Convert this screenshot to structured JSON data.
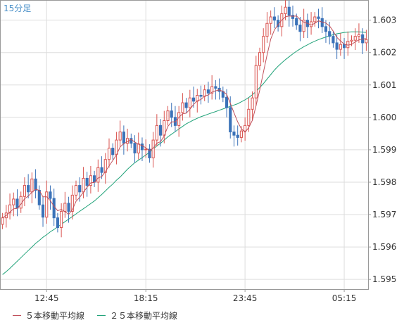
{
  "chart_data": {
    "type": "candlestick",
    "timeframe_label": "15分足",
    "x_tick_labels": [
      "12:45",
      "18:15",
      "23:45",
      "05:15"
    ],
    "y_tick_labels": [
      "1.603",
      "1.602",
      "1.601",
      "1.600",
      "1.599",
      "1.598",
      "1.597",
      "1.596",
      "1.595"
    ],
    "ylim": [
      1.5947,
      1.6036
    ],
    "grid": true,
    "colors": {
      "up": "#d9534f",
      "down": "#3b72b8",
      "ma5": "#c0505a",
      "ma25": "#22a37a",
      "grid": "#dddddd",
      "axis": "#999999",
      "label": "#4a90c8"
    },
    "series": [
      {
        "name": "５本移動平均線",
        "type": "line",
        "color": "#c0505a"
      },
      {
        "name": "２５本移動平均線",
        "type": "line",
        "color": "#22a37a"
      }
    ],
    "close": [
      1.5969,
      1.59705,
      1.5973,
      1.59748,
      1.5972,
      1.59756,
      1.5979,
      1.5977,
      1.5981,
      1.59775,
      1.5973,
      1.59692,
      1.5977,
      1.5975,
      1.5969,
      1.5966,
      1.5971,
      1.59735,
      1.5971,
      1.5976,
      1.5979,
      1.5977,
      1.59812,
      1.5979,
      1.5982,
      1.598,
      1.59845,
      1.5983,
      1.5987,
      1.59905,
      1.59885,
      1.5993,
      1.59955,
      1.5992,
      1.59935,
      1.5992,
      1.5989,
      1.59918,
      1.599,
      1.59902,
      1.59875,
      1.5993,
      1.59975,
      1.59945,
      1.5999,
      1.6002,
      1.6,
      1.59975,
      1.60015,
      1.60045,
      1.6003,
      1.6006,
      1.6005,
      1.60068,
      1.60065,
      1.60085,
      1.60075,
      1.60095,
      1.6009,
      1.6008,
      1.60062,
      1.6003,
      1.59955,
      1.59945,
      1.59938,
      1.59958,
      1.59975,
      1.60025,
      1.6006,
      1.6016,
      1.602,
      1.6025,
      1.6029,
      1.6031,
      1.603,
      1.6028,
      1.6032,
      1.6034,
      1.60315,
      1.60305,
      1.60285,
      1.60265,
      1.603,
      1.6028,
      1.60295,
      1.6031,
      1.60305,
      1.6028,
      1.60265,
      1.6025,
      1.6023,
      1.6021,
      1.60225,
      1.60215,
      1.60235,
      1.60238,
      1.6025,
      1.60255,
      1.6023,
      1.6024
    ],
    "ma5": [
      1.5969,
      1.59697,
      1.59708,
      1.59718,
      1.59719,
      1.59732,
      1.59749,
      1.59757,
      1.59769,
      1.59778,
      1.59775,
      1.59755,
      1.59755,
      1.59743,
      1.59726,
      1.59712,
      1.59716,
      1.59709,
      1.59701,
      1.59715,
      1.59741,
      1.59753,
      1.59769,
      1.59784,
      1.59798,
      1.59799,
      1.59813,
      1.59817,
      1.59833,
      1.5985,
      1.59867,
      1.59884,
      1.59909,
      1.59919,
      1.59925,
      1.59932,
      1.59924,
      1.59917,
      1.59913,
      1.59906,
      1.59897,
      1.59905,
      1.5992,
      1.59925,
      1.59943,
      1.59972,
      1.59986,
      1.59986,
      1.6,
      1.60011,
      1.60013,
      1.60025,
      1.6004,
      1.60051,
      1.60055,
      1.60066,
      1.60069,
      1.60078,
      1.60082,
      1.60085,
      1.6008,
      1.60071,
      1.60043,
      1.60014,
      1.59986,
      1.59965,
      1.59954,
      1.59968,
      1.59991,
      1.60036,
      1.60084,
      1.60139,
      1.60192,
      1.60242,
      1.6027,
      1.60286,
      1.603,
      1.6031,
      1.60313,
      1.60312,
      1.60313,
      1.60302,
      1.60294,
      1.6029,
      1.60285,
      1.6029,
      1.60298,
      1.60294,
      1.60291,
      1.60282,
      1.60266,
      1.60247,
      1.60236,
      1.60226,
      1.60223,
      1.60225,
      1.60233,
      1.60239,
      1.60242,
      1.60243
    ],
    "ma25": [
      1.59515,
      1.59524,
      1.59534,
      1.59545,
      1.59556,
      1.59567,
      1.59578,
      1.59589,
      1.596,
      1.59611,
      1.5962,
      1.5963,
      1.59638,
      1.59647,
      1.59654,
      1.59662,
      1.5967,
      1.59678,
      1.59686,
      1.59694,
      1.59702,
      1.5971,
      1.59718,
      1.59726,
      1.59734,
      1.59742,
      1.59752,
      1.59762,
      1.59773,
      1.59784,
      1.59794,
      1.59806,
      1.59816,
      1.59828,
      1.5984,
      1.5985,
      1.5986,
      1.59868,
      1.59876,
      1.59884,
      1.59892,
      1.59902,
      1.59912,
      1.5992,
      1.5993,
      1.5994,
      1.59948,
      1.59956,
      1.59964,
      1.59972,
      1.5998,
      1.59986,
      1.59992,
      1.59997,
      1.60002,
      1.60006,
      1.6001,
      1.60014,
      1.60018,
      1.60022,
      1.60026,
      1.6003,
      1.60034,
      1.60038,
      1.60042,
      1.60048,
      1.60054,
      1.60061,
      1.6007,
      1.6008,
      1.60092,
      1.60104,
      1.60118,
      1.60132,
      1.60146,
      1.60158,
      1.60168,
      1.60178,
      1.60187,
      1.60196,
      1.60204,
      1.60211,
      1.60218,
      1.60224,
      1.6023,
      1.60235,
      1.6024,
      1.60244,
      1.60248,
      1.60252,
      1.60255,
      1.60258,
      1.6026,
      1.60262,
      1.60263,
      1.60264,
      1.60264,
      1.60264,
      1.60263,
      1.60262
    ],
    "wick_size": 0.00025
  }
}
